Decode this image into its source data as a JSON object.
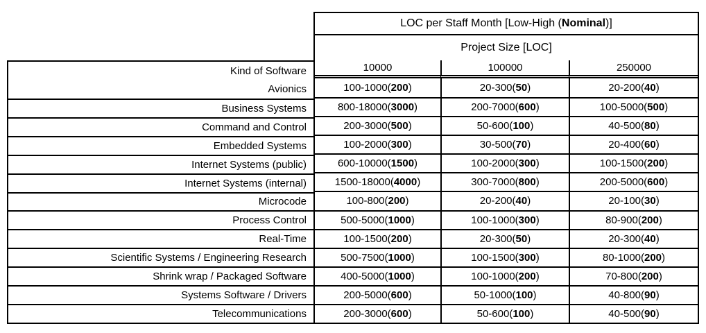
{
  "colors": {
    "border": "#000000",
    "background": "#ffffff",
    "text": "#000000"
  },
  "table": {
    "title": {
      "prefix": "LOC per Staff Month [Low-High (",
      "bold": "Nominal",
      "suffix": ")]"
    },
    "subtitle": "Project Size [LOC]",
    "kind_header": "Kind of Software",
    "col_headers": [
      "10000",
      "100000",
      "250000"
    ],
    "rows": [
      {
        "name": "Avionics",
        "cells": [
          {
            "range": "100-1000",
            "nominal": "200"
          },
          {
            "range": "20-300",
            "nominal": "50"
          },
          {
            "range": "20-200",
            "nominal": "40"
          }
        ]
      },
      {
        "name": "Business Systems",
        "cells": [
          {
            "range": "800-18000",
            "nominal": "3000"
          },
          {
            "range": "200-7000",
            "nominal": "600"
          },
          {
            "range": "100-5000",
            "nominal": "500"
          }
        ]
      },
      {
        "name": "Command and Control",
        "cells": [
          {
            "range": "200-3000",
            "nominal": "500"
          },
          {
            "range": "50-600",
            "nominal": "100"
          },
          {
            "range": "40-500",
            "nominal": "80"
          }
        ]
      },
      {
        "name": "Embedded Systems",
        "cells": [
          {
            "range": "100-2000",
            "nominal": "300"
          },
          {
            "range": "30-500",
            "nominal": "70"
          },
          {
            "range": "20-400",
            "nominal": "60"
          }
        ]
      },
      {
        "name": "Internet Systems (public)",
        "cells": [
          {
            "range": "600-10000",
            "nominal": "1500"
          },
          {
            "range": "100-2000",
            "nominal": "300"
          },
          {
            "range": "100-1500",
            "nominal": "200"
          }
        ]
      },
      {
        "name": "Internet Systems (internal)",
        "cells": [
          {
            "range": "1500-18000",
            "nominal": "4000"
          },
          {
            "range": "300-7000",
            "nominal": "800"
          },
          {
            "range": "200-5000",
            "nominal": "600"
          }
        ]
      },
      {
        "name": "Microcode",
        "cells": [
          {
            "range": "100-800",
            "nominal": "200"
          },
          {
            "range": "20-200",
            "nominal": "40"
          },
          {
            "range": "20-100",
            "nominal": "30"
          }
        ]
      },
      {
        "name": "Process Control",
        "cells": [
          {
            "range": "500-5000",
            "nominal": "1000"
          },
          {
            "range": "100-1000",
            "nominal": "300"
          },
          {
            "range": "80-900",
            "nominal": "200"
          }
        ]
      },
      {
        "name": "Real-Time",
        "cells": [
          {
            "range": "100-1500",
            "nominal": "200"
          },
          {
            "range": "20-300",
            "nominal": "50"
          },
          {
            "range": "20-300",
            "nominal": "40"
          }
        ]
      },
      {
        "name": "Scientific Systems / Engineering Research",
        "cells": [
          {
            "range": "500-7500",
            "nominal": "1000"
          },
          {
            "range": "100-1500",
            "nominal": "300"
          },
          {
            "range": "80-1000",
            "nominal": "200"
          }
        ]
      },
      {
        "name": "Shrink wrap / Packaged Software",
        "cells": [
          {
            "range": "400-5000",
            "nominal": "1000"
          },
          {
            "range": "100-1000",
            "nominal": "200"
          },
          {
            "range": "70-800",
            "nominal": "200"
          }
        ]
      },
      {
        "name": "Systems Software / Drivers",
        "cells": [
          {
            "range": "200-5000",
            "nominal": "600"
          },
          {
            "range": "50-1000",
            "nominal": "100"
          },
          {
            "range": "40-800",
            "nominal": "90"
          }
        ]
      },
      {
        "name": "Telecommunications",
        "cells": [
          {
            "range": "200-3000",
            "nominal": "600"
          },
          {
            "range": "50-600",
            "nominal": "100"
          },
          {
            "range": "40-500",
            "nominal": "90"
          }
        ]
      }
    ]
  }
}
